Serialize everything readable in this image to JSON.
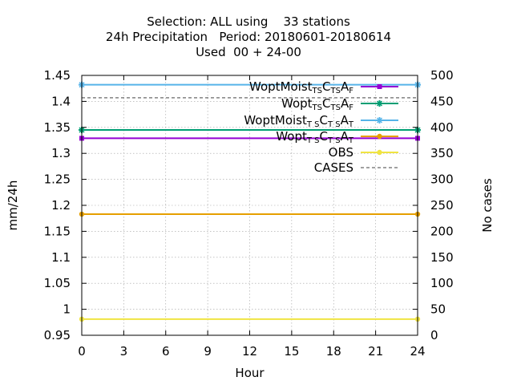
{
  "chart_data": {
    "type": "line",
    "title_lines": [
      "Selection: ALL using    33 stations",
      "24h Precipitation   Period: 20180601-20180614",
      "Used  00 + 24-00"
    ],
    "xlabel": "Hour",
    "ylabel": "mm/24h",
    "y2label": "No cases",
    "xlim": [
      0,
      24
    ],
    "ylim": [
      0.95,
      1.45
    ],
    "y2lim": [
      0,
      500
    ],
    "xticks": [
      0,
      3,
      6,
      9,
      12,
      15,
      18,
      21,
      24
    ],
    "xtick_labels": [
      "0",
      "3",
      "6",
      "9",
      "12",
      "15",
      "18",
      "21",
      "24"
    ],
    "yticks": [
      0.95,
      1.0,
      1.05,
      1.1,
      1.15,
      1.2,
      1.25,
      1.3,
      1.35,
      1.4,
      1.45
    ],
    "ytick_labels": [
      "0.95",
      "1",
      "1.05",
      "1.1",
      "1.15",
      "1.2",
      "1.25",
      "1.3",
      "1.35",
      "1.4",
      "1.45"
    ],
    "y2ticks": [
      0,
      50,
      100,
      150,
      200,
      250,
      300,
      350,
      400,
      450,
      500
    ],
    "y2tick_labels": [
      "0",
      "50",
      "100",
      "150",
      "200",
      "250",
      "300",
      "350",
      "400",
      "450",
      "500"
    ],
    "grid": true,
    "legend_position": "top-right",
    "series": [
      {
        "name": "WoptMoist",
        "sub1": "TS",
        "mid": "C",
        "sub2": "TS",
        "mid2": "A",
        "sub3": "F",
        "color": "#9400d3",
        "marker": "square",
        "x": [
          0,
          24
        ],
        "y": [
          1.329,
          1.329
        ]
      },
      {
        "name": "Wopt",
        "sub1": "TS",
        "mid": "C",
        "sub2": "TS",
        "mid2": "A",
        "sub3": "F",
        "color": "#009e73",
        "marker": "star",
        "x": [
          0,
          24
        ],
        "y": [
          1.345,
          1.345
        ]
      },
      {
        "name": "WoptMoist",
        "sub1": "T S",
        "mid": "C",
        "sub2": "T S",
        "mid2": "A",
        "sub3": "T",
        "color": "#56b4e9",
        "marker": "star",
        "x": [
          0,
          24
        ],
        "y": [
          1.432,
          1.432
        ]
      },
      {
        "name": "Wopt",
        "sub1": "T S",
        "mid": "C",
        "sub2": "T S",
        "mid2": "A",
        "sub3": "T",
        "color": "#e69f00",
        "marker": "circle",
        "x": [
          0,
          24
        ],
        "y": [
          1.183,
          1.183
        ]
      },
      {
        "name": "OBS",
        "color": "#f0e442",
        "marker": "circle",
        "x": [
          0,
          24
        ],
        "y": [
          0.981,
          0.981
        ]
      }
    ],
    "cases": {
      "name": "CASES",
      "color": "#808080",
      "axis": "y2",
      "x": [
        0,
        24
      ],
      "y": [
        457,
        457
      ]
    }
  }
}
